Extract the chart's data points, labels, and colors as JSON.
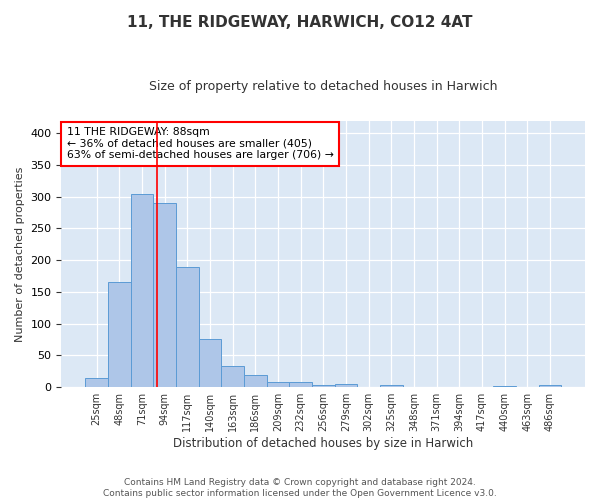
{
  "title": "11, THE RIDGEWAY, HARWICH, CO12 4AT",
  "subtitle": "Size of property relative to detached houses in Harwich",
  "xlabel": "Distribution of detached houses by size in Harwich",
  "ylabel": "Number of detached properties",
  "categories": [
    "25sqm",
    "48sqm",
    "71sqm",
    "94sqm",
    "117sqm",
    "140sqm",
    "163sqm",
    "186sqm",
    "209sqm",
    "232sqm",
    "256sqm",
    "279sqm",
    "302sqm",
    "325sqm",
    "348sqm",
    "371sqm",
    "394sqm",
    "417sqm",
    "440sqm",
    "463sqm",
    "486sqm"
  ],
  "values": [
    15,
    165,
    305,
    290,
    190,
    76,
    33,
    19,
    8,
    8,
    4,
    5,
    0,
    3,
    0,
    0,
    0,
    0,
    2,
    0,
    3
  ],
  "bar_color": "#aec6e8",
  "bar_edge_color": "#5b9bd5",
  "figure_bg": "#ffffff",
  "axes_bg": "#dce8f5",
  "grid_color": "#ffffff",
  "vline_x": 2.65,
  "vline_color": "red",
  "annotation_text": "11 THE RIDGEWAY: 88sqm\n← 36% of detached houses are smaller (405)\n63% of semi-detached houses are larger (706) →",
  "annotation_box_color": "white",
  "annotation_box_edge": "red",
  "ylim": [
    0,
    420
  ],
  "yticks": [
    0,
    50,
    100,
    150,
    200,
    250,
    300,
    350,
    400
  ],
  "footer": "Contains HM Land Registry data © Crown copyright and database right 2024.\nContains public sector information licensed under the Open Government Licence v3.0."
}
